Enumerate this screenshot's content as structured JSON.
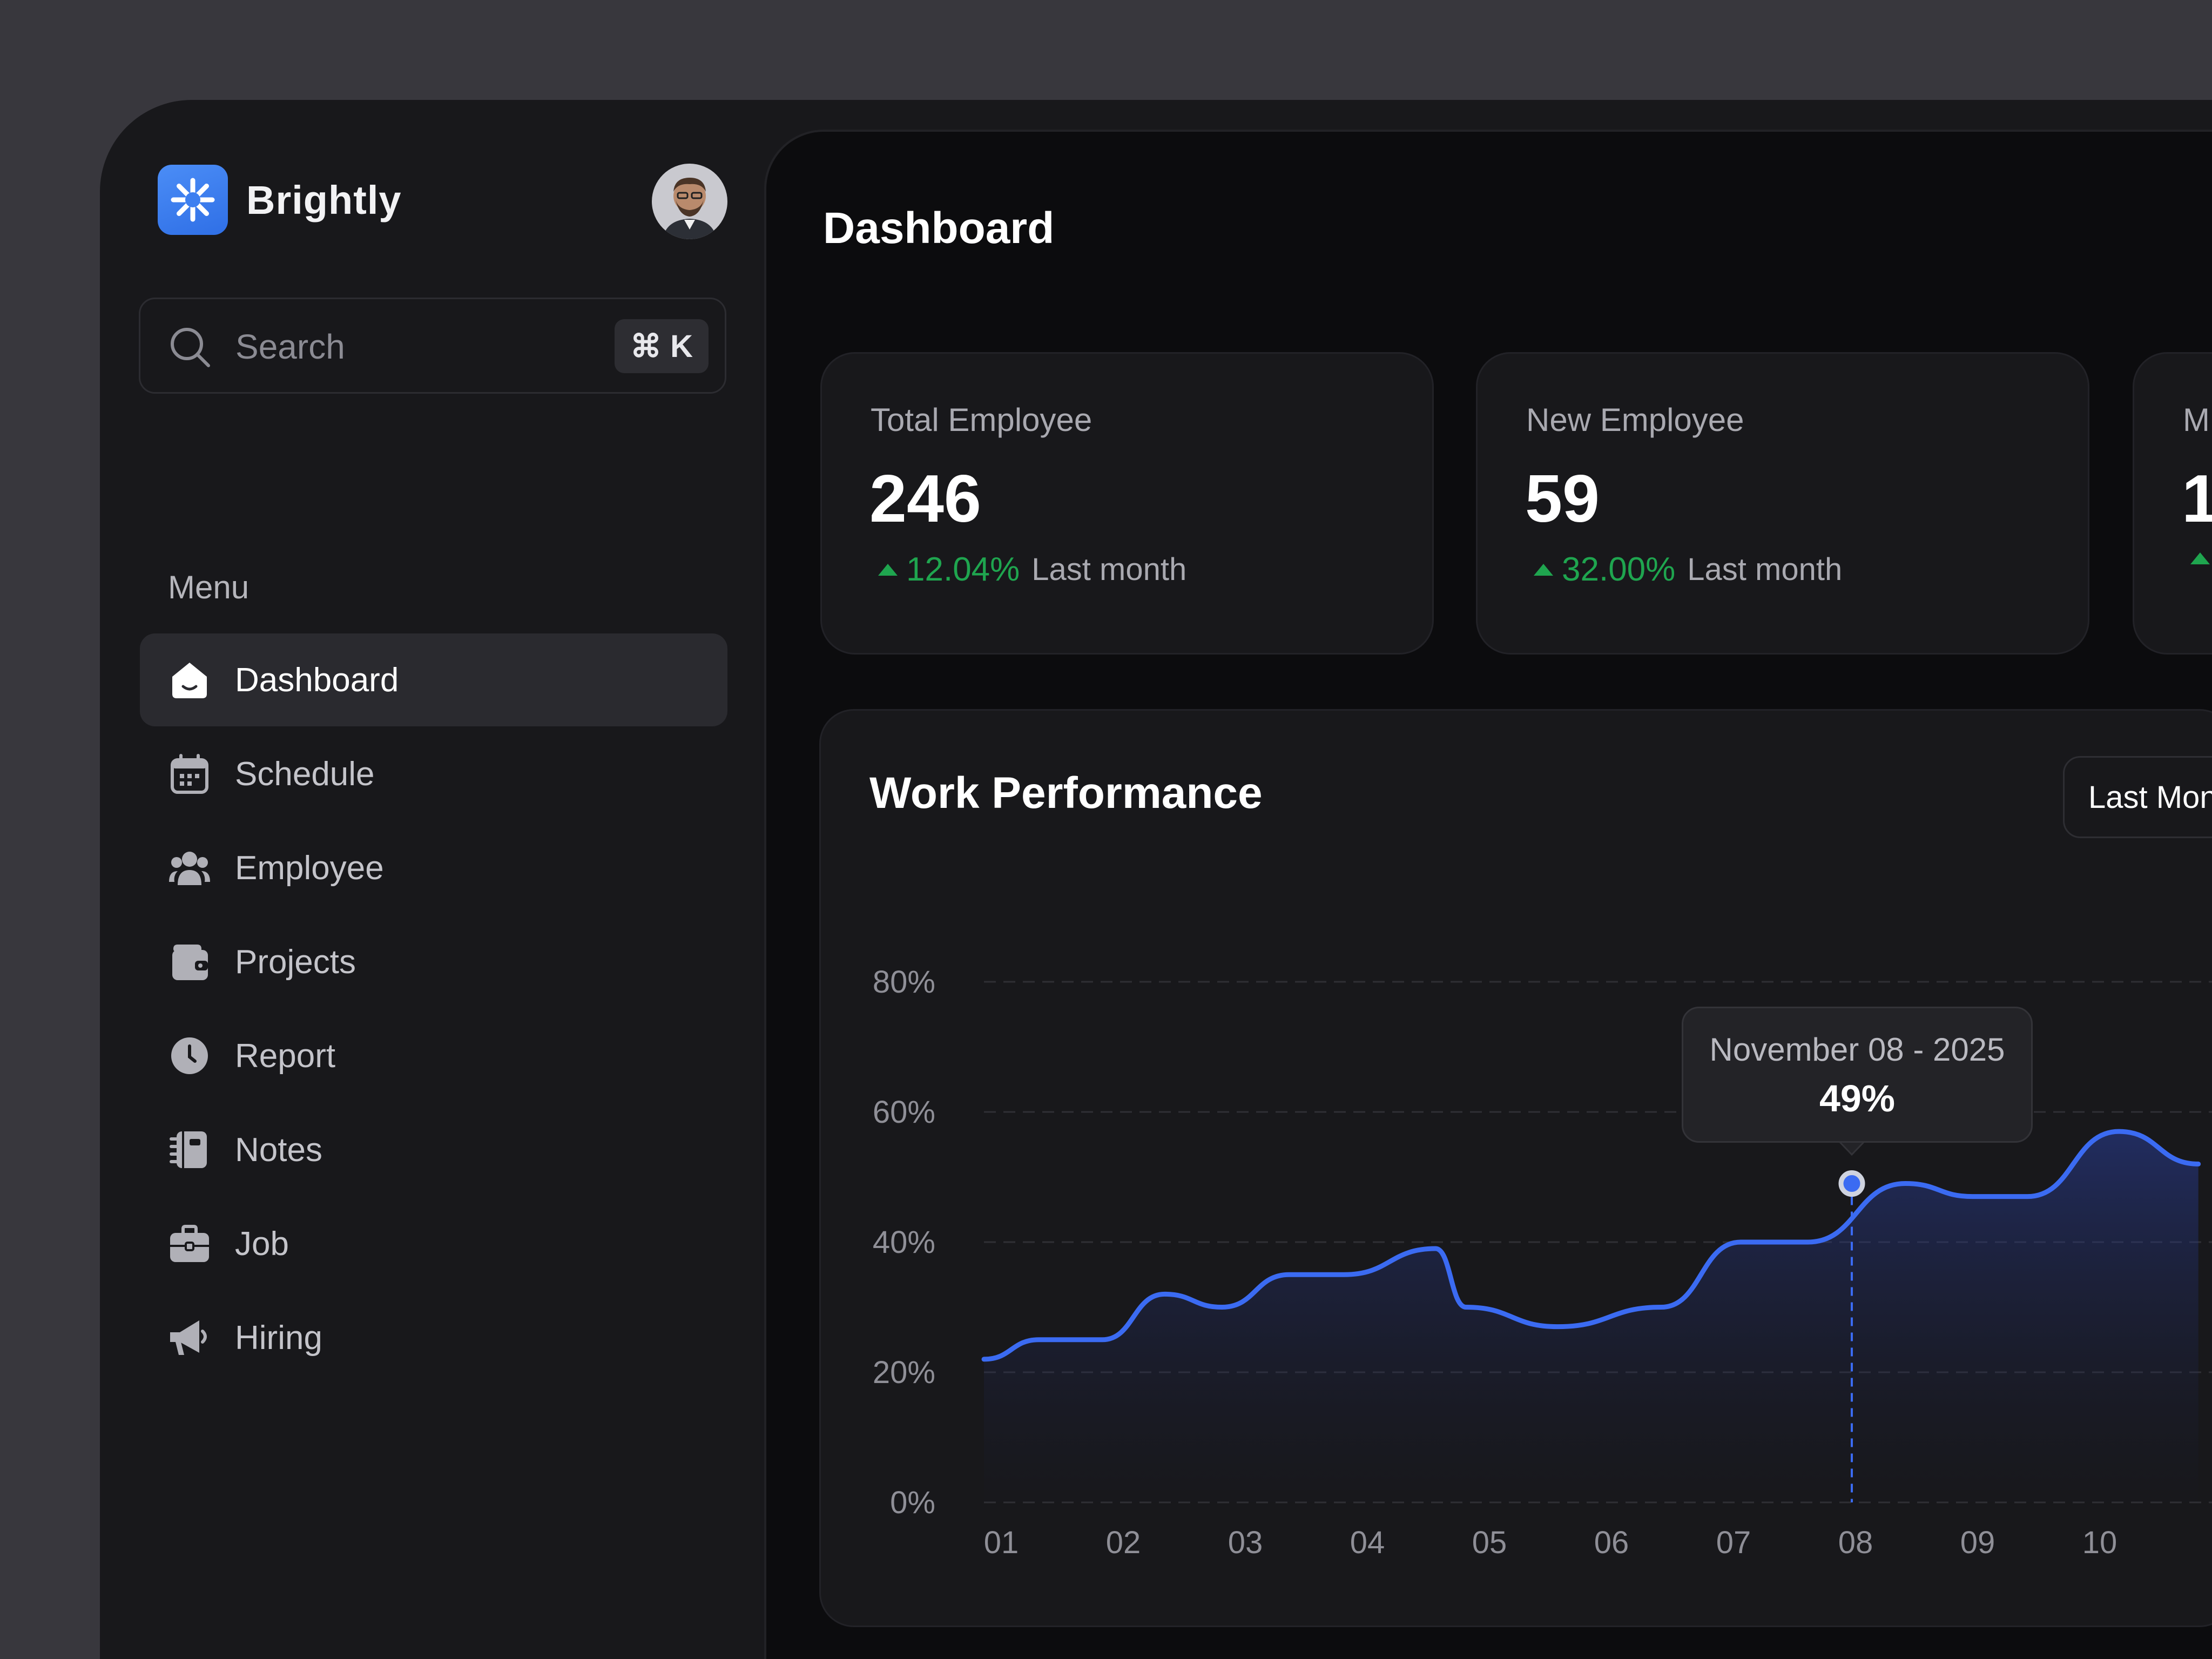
{
  "app": {
    "brand": "Brightly",
    "colors": {
      "accent": "#3b6bf2",
      "positive": "#1fa54f",
      "logo": "#3d7ff0"
    }
  },
  "search": {
    "placeholder": "Search",
    "shortcut": "⌘ K"
  },
  "sidebar": {
    "menu_label": "Menu",
    "items": [
      {
        "label": "Dashboard",
        "icon": "home-icon",
        "active": true
      },
      {
        "label": "Schedule",
        "icon": "calendar-icon",
        "active": false
      },
      {
        "label": "Employee",
        "icon": "users-icon",
        "active": false
      },
      {
        "label": "Projects",
        "icon": "wallet-icon",
        "active": false
      },
      {
        "label": "Report",
        "icon": "clock-icon",
        "active": false
      },
      {
        "label": "Notes",
        "icon": "notebook-icon",
        "active": false
      },
      {
        "label": "Job",
        "icon": "briefcase-icon",
        "active": false
      },
      {
        "label": "Hiring",
        "icon": "megaphone-icon",
        "active": false
      }
    ]
  },
  "main": {
    "title": "Dashboard",
    "stats": [
      {
        "label": "Total Employee",
        "value": "246",
        "delta": "12.04%",
        "delta_label": "Last month"
      },
      {
        "label": "New Employee",
        "value": "59",
        "delta": "32.00%",
        "delta_label": "Last month"
      },
      {
        "label": "M",
        "value": "1",
        "delta": "",
        "delta_label": ""
      }
    ],
    "performance": {
      "title": "Work Performance",
      "range": "Last Mon",
      "tooltip": {
        "date": "November 08 - 2025",
        "value": "49%"
      }
    }
  },
  "chart_data": {
    "type": "area",
    "title": "Work Performance",
    "x": [
      "01",
      "02",
      "03",
      "04",
      "05",
      "06",
      "07",
      "08",
      "09",
      "10"
    ],
    "y_tick_labels": [
      "80%",
      "60%",
      "40%",
      "20%",
      "0%"
    ],
    "ylim": [
      0,
      80
    ],
    "grid": true,
    "series": [
      {
        "x": [
          0.0,
          0.45,
          0.97,
          1.48,
          1.95,
          2.5,
          2.95,
          3.7,
          3.95,
          4.7,
          5.55,
          6.2,
          6.75,
          7.55,
          8.1,
          8.55,
          9.3,
          9.95
        ],
        "y": [
          22,
          25,
          25,
          32,
          30,
          35,
          35,
          39,
          30,
          27,
          30,
          40,
          40,
          49,
          47,
          47,
          57,
          52
        ]
      }
    ],
    "highlight": {
      "x": "08",
      "y": 49
    }
  }
}
